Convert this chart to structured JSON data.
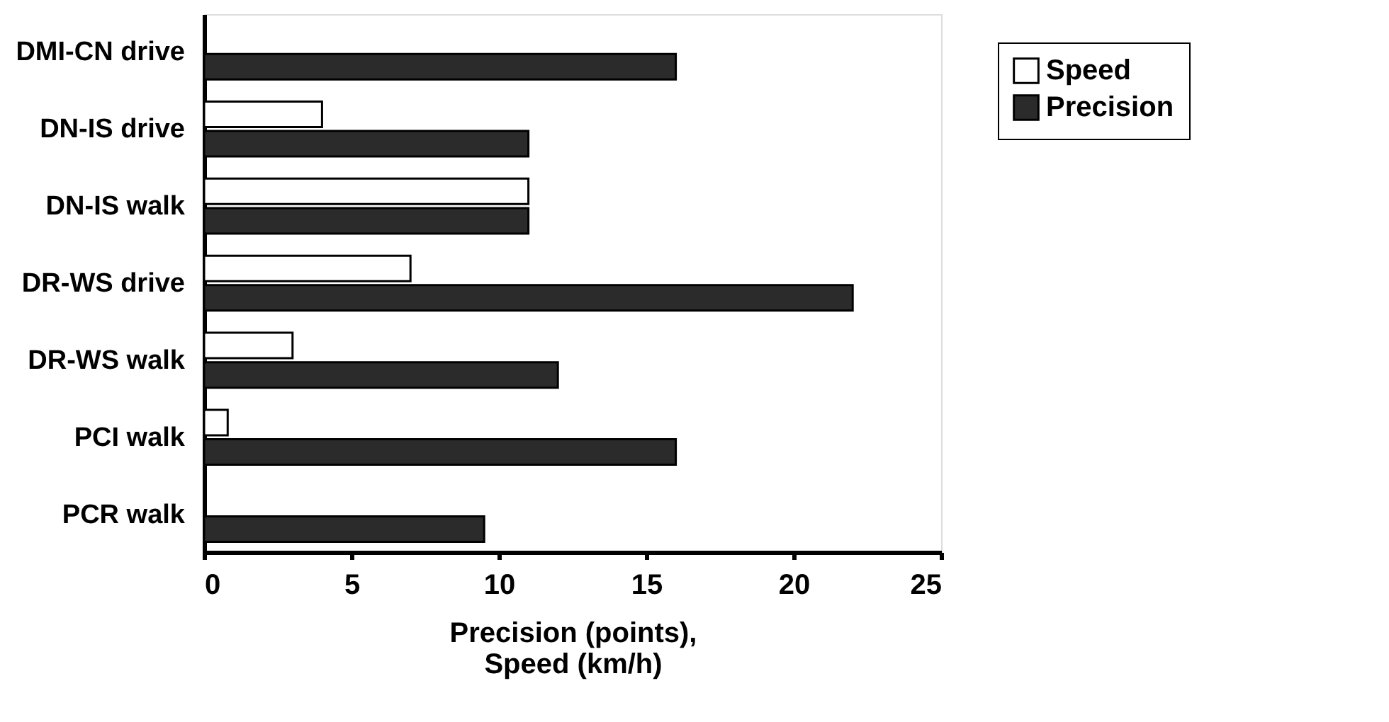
{
  "chart_data": {
    "type": "bar",
    "orientation": "horizontal",
    "xlabel": "Precision (points),\nSpeed (km/h)",
    "categories": [
      "DMI-CN drive",
      "DN-IS drive",
      "DN-IS walk",
      "DR-WS drive",
      "DR-WS walk",
      "PCI walk",
      "PCR walk"
    ],
    "series": [
      {
        "name": "Speed",
        "color": "#ffffff",
        "values": [
          null,
          4,
          11,
          7,
          3,
          0.8,
          null
        ]
      },
      {
        "name": "Precision",
        "color": "#2b2b2b",
        "values": [
          16,
          11,
          11,
          22,
          12,
          16,
          9.5
        ]
      }
    ],
    "xlim": [
      0,
      25
    ],
    "xticks": [
      0,
      5,
      10,
      15,
      20,
      25
    ],
    "grid": false,
    "legend": "top right"
  }
}
